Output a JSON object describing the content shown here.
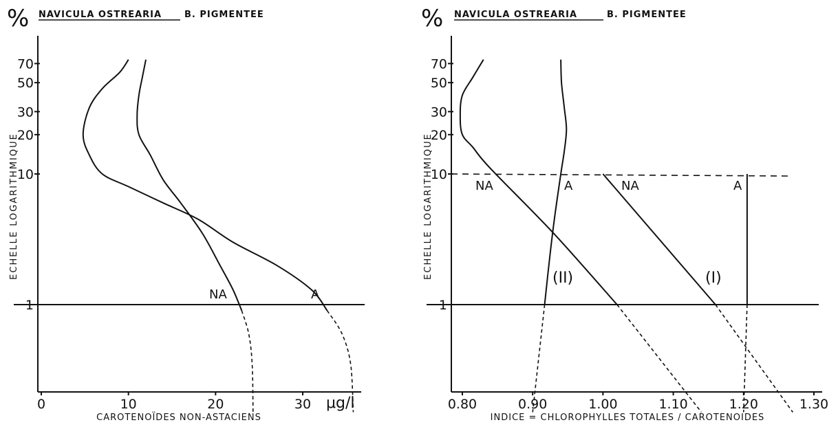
{
  "chart_data": [
    {
      "type": "line",
      "percent_symbol": "%",
      "title_underlined": "NAVICULA OSTREARIA",
      "title_rest": "B. PIGMENTEE",
      "ylabel": "ECHELLE LOGARITHMIQUE",
      "yscale": "log",
      "yticks": [
        "1",
        "10",
        "20",
        "30",
        "50",
        "70"
      ],
      "xlabel": "CAROTENOÏDES NON-ASTACIENS",
      "xunit": "μg/l",
      "xticks": [
        "0",
        "10",
        "20",
        "30"
      ],
      "xlim": [
        0,
        37
      ],
      "ylim": [
        0.13,
        95
      ],
      "series": [
        {
          "name": "NA",
          "solid": [
            [
              10.0,
              75
            ],
            [
              9.0,
              60
            ],
            [
              7.0,
              45
            ],
            [
              5.5,
              32
            ],
            [
              4.8,
              20
            ],
            [
              5.5,
              14
            ],
            [
              7.0,
              10
            ],
            [
              10.0,
              8
            ],
            [
              14.0,
              6
            ],
            [
              18.0,
              4.5
            ],
            [
              22.0,
              3.0
            ],
            [
              27.0,
              2.0
            ],
            [
              31.0,
              1.3
            ],
            [
              32.8,
              0.9
            ]
          ],
          "dashed": [
            [
              32.8,
              0.9
            ],
            [
              34.5,
              0.6
            ],
            [
              35.5,
              0.35
            ],
            [
              35.8,
              0.15
            ]
          ]
        },
        {
          "name": "A",
          "solid": [
            [
              12.0,
              75
            ],
            [
              11.6,
              55
            ],
            [
              11.2,
              40
            ],
            [
              11.0,
              28
            ],
            [
              11.2,
              20
            ],
            [
              12.5,
              14
            ],
            [
              14.0,
              9
            ],
            [
              16.0,
              6
            ],
            [
              18.5,
              3.5
            ],
            [
              20.5,
              2.0
            ],
            [
              22.0,
              1.3
            ],
            [
              23.0,
              0.9
            ]
          ],
          "dashed": [
            [
              23.0,
              0.9
            ],
            [
              23.8,
              0.6
            ],
            [
              24.2,
              0.35
            ],
            [
              24.3,
              0.15
            ]
          ]
        }
      ],
      "annotations": [
        "NA",
        "A"
      ]
    },
    {
      "type": "line",
      "percent_symbol": "%",
      "title_underlined": "NAVICULA OSTREARIA",
      "title_rest": "B. PIGMENTEE",
      "ylabel": "ECHELLE LOGARITHMIQUE",
      "yscale": "log",
      "yticks": [
        "1",
        "10",
        "20",
        "30",
        "50",
        "70"
      ],
      "xlabel": "INDICE = CHLOROPHYLLES TOTALES / CAROTENOIDES",
      "xticks": [
        "0.80",
        "0.90",
        "1.00",
        "1.10",
        "1.20",
        "1.30"
      ],
      "xlim": [
        0.77,
        1.31
      ],
      "ylim": [
        0.13,
        95
      ],
      "series": [
        {
          "name": "NA",
          "solid": [
            [
              0.83,
              75
            ],
            [
              0.815,
              55
            ],
            [
              0.8,
              40
            ],
            [
              0.797,
              28
            ],
            [
              0.8,
              20
            ],
            [
              0.815,
              16
            ],
            [
              0.84,
              11
            ],
            [
              0.93,
              3.5
            ],
            [
              1.02,
              1.0
            ]
          ],
          "dashed": [
            [
              1.02,
              1.0
            ],
            [
              1.14,
              0.15
            ]
          ]
        },
        {
          "name": "A",
          "solid": [
            [
              0.94,
              75
            ],
            [
              0.941,
              50
            ],
            [
              0.945,
              32
            ],
            [
              0.948,
              22
            ],
            [
              0.945,
              15
            ],
            [
              0.94,
              10
            ],
            [
              0.932,
              5
            ],
            [
              0.925,
              2.5
            ],
            [
              0.917,
              1.0
            ]
          ],
          "dashed": [
            [
              0.917,
              1.0
            ],
            [
              0.9,
              0.15
            ]
          ]
        },
        {
          "name": "NA",
          "solid": [
            [
              1.0,
              10
            ],
            [
              1.16,
              1.0
            ]
          ],
          "dashed": [
            [
              1.16,
              1.0
            ],
            [
              1.27,
              0.15
            ]
          ]
        },
        {
          "name": "A",
          "solid": [
            [
              1.205,
              10
            ],
            [
              1.205,
              1.0
            ]
          ],
          "dashed": [
            [
              1.205,
              1.0
            ],
            [
              1.2,
              0.15
            ]
          ]
        }
      ],
      "reference_line": {
        "y": 10,
        "x_from": 0.77,
        "x_to": 1.3,
        "style": "dashed"
      },
      "annotations": [
        "NA",
        "A",
        "NA",
        "A",
        "(II)",
        "(I)"
      ]
    }
  ]
}
